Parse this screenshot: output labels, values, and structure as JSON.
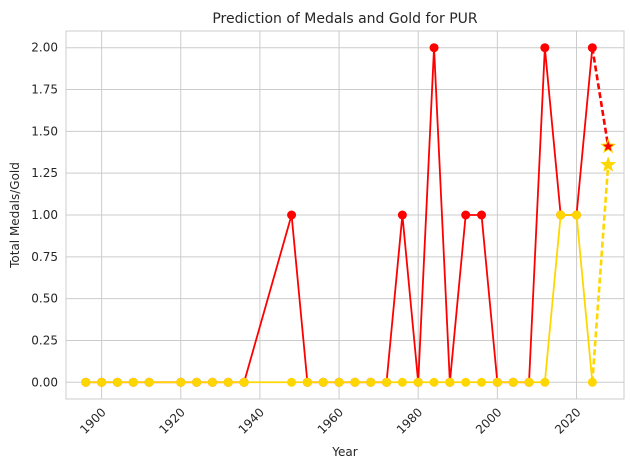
{
  "chart_data": {
    "type": "line",
    "title": "Prediction of Medals and Gold for PUR",
    "xlabel": "Year",
    "ylabel": "Total Medals/Gold",
    "xlim": [
      1891,
      2032
    ],
    "ylim": [
      -0.1,
      2.1
    ],
    "grid": true,
    "xticks": [
      1900,
      1920,
      1940,
      1960,
      1980,
      2000,
      2020
    ],
    "yticks": [
      0.0,
      0.25,
      0.5,
      0.75,
      1.0,
      1.25,
      1.5,
      1.75,
      2.0
    ],
    "ytick_labels": [
      "0.00",
      "0.25",
      "0.50",
      "0.75",
      "1.00",
      "1.25",
      "1.50",
      "1.75",
      "2.00"
    ],
    "series": [
      {
        "color": "#ff0000",
        "style": "solid",
        "marker": "circle",
        "x": [
          1896,
          1900,
          1904,
          1908,
          1912,
          1920,
          1924,
          1928,
          1932,
          1936,
          1948,
          1952,
          1956,
          1960,
          1964,
          1968,
          1972,
          1976,
          1980,
          1984,
          1988,
          1992,
          1996,
          2000,
          2004,
          2008,
          2012,
          2016,
          2020,
          2024
        ],
        "y": [
          0,
          0,
          0,
          0,
          0,
          0,
          0,
          0,
          0,
          0,
          1,
          0,
          0,
          0,
          0,
          0,
          0,
          1,
          0,
          2,
          0,
          1,
          1,
          0,
          0,
          0,
          2,
          1,
          1,
          2
        ]
      },
      {
        "color": "#ffd700",
        "style": "solid",
        "marker": "circle",
        "x": [
          1896,
          1900,
          1904,
          1908,
          1912,
          1920,
          1924,
          1928,
          1932,
          1936,
          1948,
          1952,
          1956,
          1960,
          1964,
          1968,
          1972,
          1976,
          1980,
          1984,
          1988,
          1992,
          1996,
          2000,
          2004,
          2008,
          2012,
          2016,
          2020,
          2024
        ],
        "y": [
          0,
          0,
          0,
          0,
          0,
          0,
          0,
          0,
          0,
          0,
          0,
          0,
          0,
          0,
          0,
          0,
          0,
          0,
          0,
          0,
          0,
          0,
          0,
          0,
          0,
          0,
          0,
          1,
          1,
          0
        ]
      },
      {
        "color": "#ff0000",
        "style": "dashed",
        "marker": "star",
        "x": [
          2024,
          2028
        ],
        "y": [
          2,
          1.41
        ]
      },
      {
        "color": "#ffd700",
        "style": "dashed",
        "marker": "star",
        "x": [
          2024,
          2028
        ],
        "y": [
          0,
          1.3
        ]
      }
    ]
  }
}
